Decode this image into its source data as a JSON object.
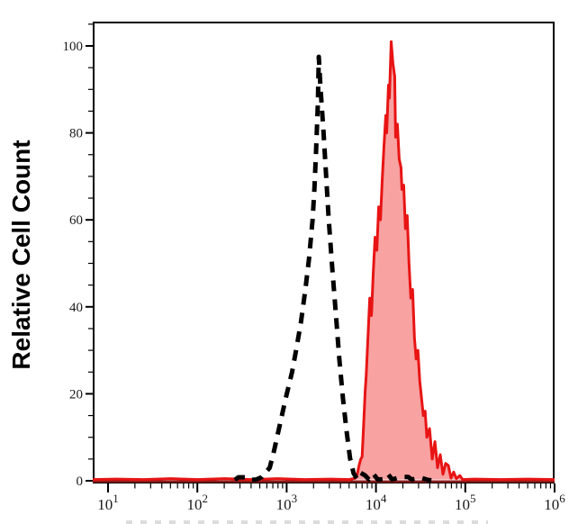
{
  "figure": {
    "title": "",
    "background": "#ffffff"
  },
  "chart_data": {
    "type": "area",
    "subtype": "flow-cytometry-histogram-overlay",
    "title": "",
    "xlabel": "",
    "ylabel": "Relative Cell Count",
    "x_scale": "log10",
    "x_log_range": [
      0.83,
      6.0
    ],
    "ylim": [
      0,
      105.6
    ],
    "grid": false,
    "legend": "none",
    "x_major_ticks": [
      {
        "base": "10",
        "exp": "1",
        "log": 1
      },
      {
        "base": "10",
        "exp": "2",
        "log": 2
      },
      {
        "base": "10",
        "exp": "3",
        "log": 3
      },
      {
        "base": "10",
        "exp": "4",
        "log": 4
      },
      {
        "base": "10",
        "exp": "5",
        "log": 5
      },
      {
        "base": "10",
        "exp": "6",
        "log": 6
      }
    ],
    "y_ticks": [
      {
        "label": "0",
        "value": 0
      },
      {
        "label": "20",
        "value": 20
      },
      {
        "label": "40",
        "value": 40
      },
      {
        "label": "60",
        "value": 60
      },
      {
        "label": "80",
        "value": 80
      },
      {
        "label": "100",
        "value": 100
      }
    ],
    "y_minor_step": 5,
    "colors": {
      "red_line": "#e81414",
      "red_fill": "#f8a2a2",
      "dashed_line": "#000000",
      "axis": "#000000",
      "baseline_overlay": "#8b1a1a"
    },
    "series": [
      {
        "name": "red-filled-histogram",
        "line_color": "#e81414",
        "fill": "#f8a2a2",
        "line_style": "solid",
        "peak": {
          "log10_x": 4.17,
          "count": 101
        },
        "points": [
          [
            0.83,
            0.3
          ],
          [
            1.1,
            0.4
          ],
          [
            1.4,
            0.3
          ],
          [
            1.7,
            0.5
          ],
          [
            2.0,
            0.3
          ],
          [
            2.3,
            0.5
          ],
          [
            2.6,
            0.3
          ],
          [
            2.9,
            0.5
          ],
          [
            3.2,
            0.3
          ],
          [
            3.5,
            0.4
          ],
          [
            3.7,
            0.3
          ],
          [
            3.77,
            0.6
          ],
          [
            3.79,
            1.5
          ],
          [
            3.81,
            3.5
          ],
          [
            3.83,
            5
          ],
          [
            3.845,
            5.5
          ],
          [
            3.86,
            12
          ],
          [
            3.88,
            21
          ],
          [
            3.89,
            24
          ],
          [
            3.91,
            33
          ],
          [
            3.93,
            42
          ],
          [
            3.95,
            38
          ],
          [
            3.97,
            48
          ],
          [
            3.99,
            56
          ],
          [
            4.01,
            53
          ],
          [
            4.03,
            63
          ],
          [
            4.05,
            60
          ],
          [
            4.07,
            69
          ],
          [
            4.09,
            77
          ],
          [
            4.11,
            84
          ],
          [
            4.12,
            80
          ],
          [
            4.14,
            91
          ],
          [
            4.15,
            88
          ],
          [
            4.17,
            101
          ],
          [
            4.19,
            96
          ],
          [
            4.21,
            93
          ],
          [
            4.22,
            79
          ],
          [
            4.24,
            82
          ],
          [
            4.26,
            74
          ],
          [
            4.28,
            72
          ],
          [
            4.29,
            67
          ],
          [
            4.31,
            68
          ],
          [
            4.33,
            58
          ],
          [
            4.35,
            61
          ],
          [
            4.37,
            50
          ],
          [
            4.39,
            42
          ],
          [
            4.41,
            44
          ],
          [
            4.43,
            33
          ],
          [
            4.45,
            28
          ],
          [
            4.47,
            30
          ],
          [
            4.49,
            23
          ],
          [
            4.51,
            19
          ],
          [
            4.53,
            15
          ],
          [
            4.55,
            16
          ],
          [
            4.57,
            10
          ],
          [
            4.6,
            12
          ],
          [
            4.63,
            5
          ],
          [
            4.66,
            9
          ],
          [
            4.69,
            3
          ],
          [
            4.72,
            6
          ],
          [
            4.75,
            1.5
          ],
          [
            4.78,
            4
          ],
          [
            4.81,
            3.5
          ],
          [
            4.84,
            0.6
          ],
          [
            4.87,
            2
          ],
          [
            4.9,
            0.5
          ],
          [
            4.94,
            1.2
          ],
          [
            4.97,
            0.3
          ],
          [
            5.1,
            0.4
          ],
          [
            5.4,
            0.3
          ],
          [
            5.7,
            0.4
          ],
          [
            6.0,
            0.3
          ]
        ]
      },
      {
        "name": "black-dashed-histogram",
        "line_color": "#000000",
        "fill": "none",
        "line_style": "dashed",
        "peak": {
          "log10_x": 3.36,
          "count": 97.5
        },
        "points": [
          [
            2.42,
            0.2
          ],
          [
            2.46,
            0.8
          ],
          [
            2.56,
            0.8
          ],
          [
            2.6,
            0.2
          ],
          [
            2.66,
            0.3
          ],
          [
            2.72,
            0.8
          ],
          [
            2.76,
            1.8
          ],
          [
            2.81,
            3
          ],
          [
            2.86,
            7
          ],
          [
            2.93,
            13.5
          ],
          [
            2.99,
            19
          ],
          [
            3.06,
            25
          ],
          [
            3.11,
            30.5
          ],
          [
            3.16,
            36.5
          ],
          [
            3.21,
            44
          ],
          [
            3.25,
            51
          ],
          [
            3.29,
            60
          ],
          [
            3.31,
            67
          ],
          [
            3.33,
            76
          ],
          [
            3.35,
            87
          ],
          [
            3.36,
            97.5
          ],
          [
            3.38,
            90
          ],
          [
            3.41,
            81
          ],
          [
            3.44,
            71
          ],
          [
            3.47,
            60.5
          ],
          [
            3.51,
            49
          ],
          [
            3.55,
            38.5
          ],
          [
            3.59,
            28
          ],
          [
            3.63,
            19
          ],
          [
            3.67,
            11.5
          ],
          [
            3.71,
            5.2
          ],
          [
            3.75,
            1.7
          ],
          [
            3.79,
            0.4
          ],
          [
            3.83,
            1.8
          ],
          [
            3.88,
            1.2
          ],
          [
            3.92,
            0.3
          ],
          [
            3.97,
            1.6
          ],
          [
            4.02,
            0.3
          ],
          [
            4.1,
            0.4
          ],
          [
            4.14,
            1.4
          ],
          [
            4.18,
            0.3
          ],
          [
            4.28,
            0.9
          ],
          [
            4.36,
            0.9
          ],
          [
            4.4,
            0.3
          ],
          [
            4.5,
            0.7
          ],
          [
            4.58,
            0.2
          ],
          [
            4.62,
            0.1
          ]
        ]
      }
    ]
  }
}
